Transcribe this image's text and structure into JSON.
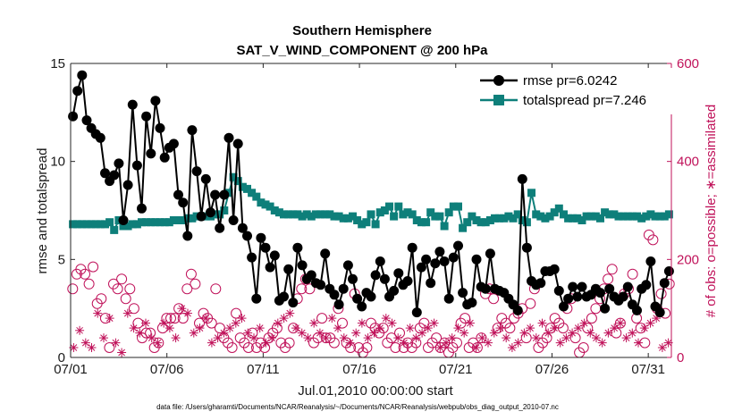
{
  "chart_data": {
    "type": "line",
    "title": "Southern Hemisphere",
    "subtitle": "SAT_V_WIND_COMPONENT @ 200 hPa",
    "xlabel": "Jul.01,2010 00:00:00 start",
    "ylabel": "rmse and totalspread",
    "ylabel_right": "# of obs: o=possible; ∗=assimilated",
    "xlim": [
      0,
      31.2
    ],
    "ylim": [
      0,
      15
    ],
    "ylim_right": [
      0,
      600
    ],
    "x_ticks": [
      {
        "value": 0,
        "label": "07/01"
      },
      {
        "value": 5,
        "label": "07/06"
      },
      {
        "value": 10,
        "label": "07/11"
      },
      {
        "value": 15,
        "label": "07/16"
      },
      {
        "value": 20,
        "label": "07/21"
      },
      {
        "value": 25,
        "label": "07/26"
      },
      {
        "value": 30,
        "label": "07/31"
      }
    ],
    "y_ticks": [
      "0",
      "5",
      "10",
      "15"
    ],
    "y_ticks_right": [
      "0",
      "200",
      "400",
      "600"
    ],
    "legend_position": "top-right",
    "colors": {
      "rmse": "#000000",
      "spread": "#0e7f7a",
      "obs": "#c0125a"
    },
    "footer": "data file: /Users/gharamti/Documents/NCAR/Reanalysis/~/Documents/NCAR/Reanalysis/webpub/obs_diag_output_2010-07.nc",
    "series": [
      {
        "name": "rmse pr=6.0242",
        "marker": "circle",
        "values": [
          12.3,
          13.6,
          14.4,
          12.1,
          11.7,
          11.4,
          11.2,
          9.4,
          9.0,
          9.3,
          9.9,
          7.0,
          8.8,
          12.9,
          9.8,
          7.6,
          12.3,
          10.4,
          13.1,
          11.7,
          10.2,
          10.7,
          10.9,
          8.3,
          7.9,
          6.2,
          11.6,
          9.5,
          7.2,
          9.1,
          7.4,
          8.3,
          6.6,
          8.3,
          11.2,
          7.0,
          10.9,
          6.6,
          6.2,
          5.1,
          3.0,
          6.1,
          5.6,
          4.6,
          5.2,
          2.9,
          3.1,
          4.5,
          2.8,
          5.6,
          4.7,
          4.0,
          4.2,
          3.8,
          3.7,
          5.3,
          3.5,
          3.2,
          2.7,
          3.5,
          4.7,
          4.0,
          3.0,
          2.6,
          3.3,
          3.1,
          4.2,
          4.9,
          4.0,
          3.1,
          3.4,
          4.3,
          3.7,
          3.9,
          5.6,
          2.3,
          4.6,
          5.0,
          3.8,
          4.8,
          5.4,
          4.9,
          3.0,
          5.1,
          5.7,
          3.3,
          2.7,
          2.8,
          5.0,
          3.6,
          3.5,
          5.3,
          3.5,
          3.4,
          3.3,
          3.0,
          2.7,
          2.4,
          9.1,
          5.6,
          3.9,
          3.7,
          3.8,
          4.4,
          4.4,
          4.5,
          3.4,
          2.6,
          3.0,
          3.6,
          3.1,
          3.6,
          3.1,
          3.2,
          3.5,
          3.3,
          2.5,
          3.5,
          3.1,
          2.9,
          3.1,
          3.6,
          2.7,
          2.4,
          3.5,
          3.7,
          4.9,
          2.6,
          2.3,
          3.8,
          4.4
        ]
      },
      {
        "name": "totalspread pr=7.246",
        "marker": "square",
        "values": [
          6.8,
          6.8,
          6.8,
          6.8,
          6.8,
          6.8,
          6.8,
          6.8,
          6.9,
          6.5,
          7.0,
          6.7,
          6.7,
          6.8,
          6.8,
          6.9,
          6.9,
          6.9,
          6.9,
          6.9,
          6.9,
          6.9,
          7.0,
          7.0,
          7.0,
          7.1,
          7.1,
          7.2,
          7.2,
          7.2,
          7.2,
          7.3,
          7.3,
          7.5,
          8.4,
          9.2,
          9.0,
          8.7,
          8.6,
          8.4,
          8.2,
          7.9,
          7.8,
          7.7,
          7.5,
          7.4,
          7.3,
          7.3,
          7.3,
          7.3,
          7.2,
          7.3,
          7.2,
          7.3,
          7.3,
          7.3,
          7.3,
          7.2,
          7.2,
          7.1,
          7.1,
          7.2,
          7.0,
          6.8,
          6.9,
          7.3,
          6.8,
          7.4,
          7.5,
          7.7,
          7.2,
          7.7,
          7.3,
          7.4,
          7.3,
          7.0,
          6.9,
          6.9,
          7.4,
          7.2,
          7.2,
          6.7,
          7.4,
          7.7,
          7.7,
          6.6,
          6.9,
          7.2,
          7.0,
          6.9,
          6.9,
          7.0,
          7.1,
          7.1,
          7.1,
          7.2,
          7.1,
          7.3,
          7.0,
          6.9,
          8.4,
          7.3,
          7.2,
          7.1,
          7.2,
          7.4,
          7.6,
          7.3,
          7.1,
          7.1,
          7.1,
          7.0,
          7.2,
          7.2,
          7.2,
          7.1,
          7.4,
          7.3,
          7.3,
          7.2,
          7.2,
          7.2,
          7.2,
          7.2,
          7.1,
          7.2,
          7.3,
          7.2,
          7.2,
          7.2,
          7.3
        ]
      },
      {
        "name": "obs possible",
        "marker": "circle-open",
        "axis": "right",
        "values": [
          140,
          170,
          180,
          170,
          150,
          185,
          110,
          120,
          80,
          20,
          150,
          140,
          160,
          120,
          140,
          100,
          70,
          40,
          50,
          50,
          20,
          30,
          60,
          80,
          80,
          80,
          100,
          80,
          140,
          170,
          150,
          70,
          90,
          80,
          70,
          140,
          60,
          40,
          30,
          20,
          90,
          40,
          30,
          20,
          50,
          20,
          30,
          20,
          40,
          50,
          60,
          30,
          20,
          30,
          60,
          120,
          140,
          160,
          140,
          30,
          40,
          80,
          40,
          40,
          30,
          100,
          70,
          30,
          20,
          130,
          20,
          10,
          20,
          70,
          60,
          50,
          60,
          30,
          40,
          20,
          50,
          20,
          30,
          20,
          30,
          60,
          70,
          20,
          30,
          40,
          20,
          30,
          10,
          20,
          30,
          70,
          80,
          20,
          30,
          20,
          40,
          130,
          140,
          120,
          60,
          80,
          70,
          60,
          80,
          90,
          100,
          40,
          110,
          140,
          20,
          30,
          40,
          60,
          80,
          70,
          60,
          100,
          120,
          40,
          10,
          20,
          60,
          80,
          100,
          120,
          140,
          160,
          180,
          50,
          70,
          130,
          140,
          170,
          80,
          60,
          30,
          250,
          240,
          100,
          130,
          90,
          150
        ]
      },
      {
        "name": "obs assimilated",
        "marker": "asterisk",
        "axis": "right",
        "values": [
          20,
          55,
          30,
          20,
          90,
          40,
          80,
          30,
          10,
          90,
          60,
          50,
          70,
          40,
          30,
          70,
          60,
          40,
          100,
          90,
          50,
          60,
          80,
          30,
          40,
          50,
          60,
          70,
          80,
          50,
          40,
          60,
          30,
          40,
          70,
          80,
          90,
          60,
          50,
          40,
          70,
          50,
          40,
          80,
          60,
          40,
          30,
          50,
          70,
          40,
          50,
          60,
          80,
          70,
          40,
          30,
          60,
          40,
          50,
          60,
          70,
          20,
          30,
          40,
          60,
          50,
          70,
          20,
          40,
          30,
          50,
          60,
          40,
          20,
          30,
          50,
          60,
          40,
          70,
          50,
          60,
          30,
          40,
          50,
          60,
          70,
          50,
          40,
          30,
          50,
          60,
          70,
          40,
          50,
          30,
          60,
          70,
          80,
          20,
          30
        ]
      }
    ]
  }
}
